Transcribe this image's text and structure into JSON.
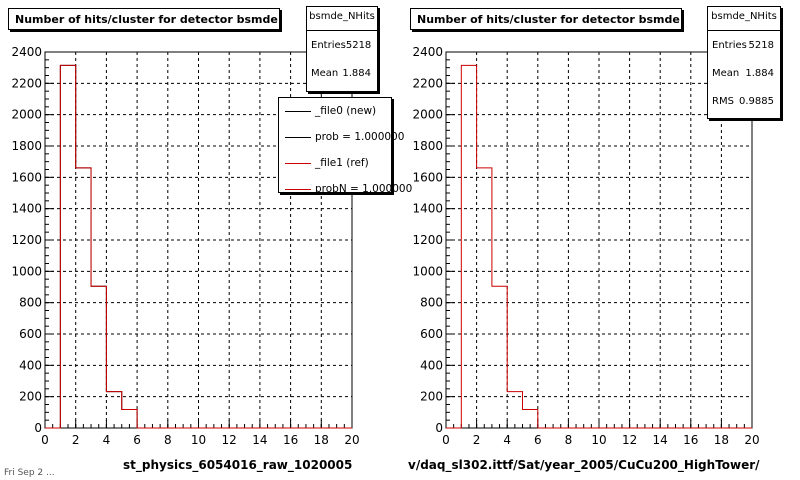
{
  "footer_text": "Fri Sep  2 ...",
  "chart_data": [
    {
      "type": "histogram",
      "title": "Number of hits/cluster for detector bsmde",
      "xlabel": "st_physics_6054016_raw_1020005",
      "xlim": [
        0,
        20
      ],
      "ylim": [
        0,
        2400
      ],
      "x_ticks": [
        0,
        2,
        4,
        6,
        8,
        10,
        12,
        14,
        16,
        18,
        20
      ],
      "y_ticks": [
        0,
        200,
        400,
        600,
        800,
        1000,
        1200,
        1400,
        1600,
        1800,
        2000,
        2200,
        2400
      ],
      "grid": true,
      "bin_edges": [
        1,
        2,
        3,
        4,
        5,
        6
      ],
      "series": [
        {
          "name": "_file0 (new)",
          "color": "#000000",
          "values": [
            2315,
            1660,
            905,
            232,
            118
          ]
        },
        {
          "name": "_file1 (ref)",
          "color": "#cc0000",
          "values": [
            2315,
            1660,
            905,
            232,
            118
          ]
        }
      ],
      "stats": {
        "name": "bsmde_NHits",
        "rows": [
          {
            "label": "Entries",
            "value": "5218"
          },
          {
            "label": "Mean",
            "value": "1.884"
          }
        ]
      },
      "legend": {
        "position": "top-right",
        "entries": [
          {
            "label": "_file0 (new)",
            "color": "#000000"
          },
          {
            "label": "prob = 1.000000",
            "color": "#000000"
          },
          {
            "label": "_file1 (ref)",
            "color": "#cc0000"
          },
          {
            "label": "probN = 1.000000",
            "color": "#cc0000"
          }
        ]
      }
    },
    {
      "type": "histogram",
      "title": "Number of hits/cluster for detector bsmde",
      "xlabel": "v/daq_sl302.ittf/Sat/year_2005/CuCu200_HighTower/",
      "xlim": [
        0,
        20
      ],
      "ylim": [
        0,
        2400
      ],
      "x_ticks": [
        0,
        2,
        4,
        6,
        8,
        10,
        12,
        14,
        16,
        18,
        20
      ],
      "y_ticks": [
        0,
        200,
        400,
        600,
        800,
        1000,
        1200,
        1400,
        1600,
        1800,
        2000,
        2200,
        2400
      ],
      "grid": true,
      "bin_edges": [
        1,
        2,
        3,
        4,
        5,
        6
      ],
      "series": [
        {
          "color": "#cc0000",
          "values": [
            2315,
            1660,
            905,
            232,
            118
          ]
        }
      ],
      "stats": {
        "name": "bsmde_NHits",
        "rows": [
          {
            "label": "Entries",
            "value": "5218"
          },
          {
            "label": "Mean",
            "value": "1.884"
          },
          {
            "label": "RMS",
            "value": "0.9885"
          }
        ]
      }
    }
  ]
}
